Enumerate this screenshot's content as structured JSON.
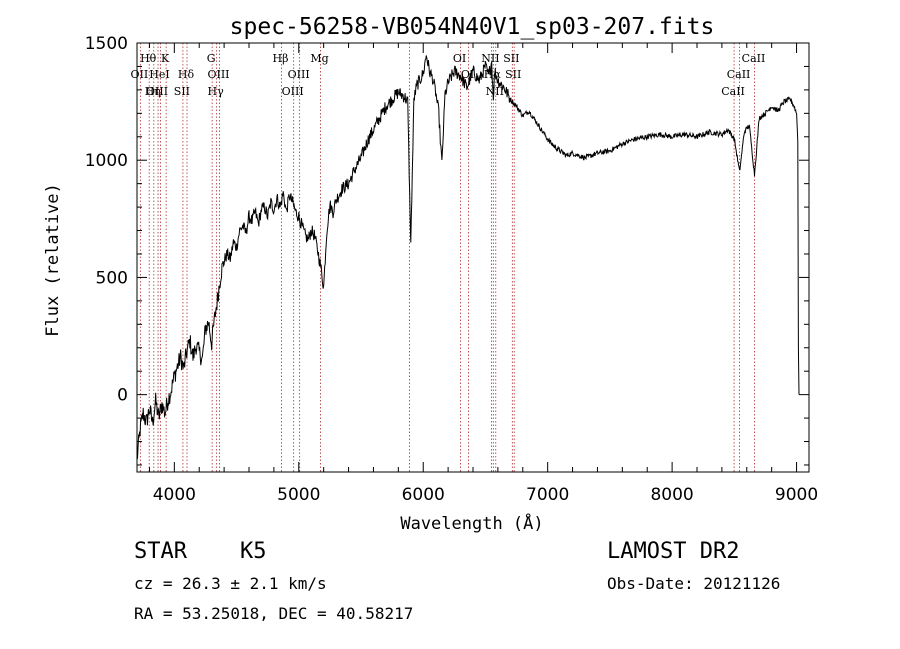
{
  "chart_data": {
    "type": "line",
    "title": "spec-56258-VB054N40V1_sp03-207.fits",
    "xlabel": "Wavelength (Å)",
    "ylabel": "Flux (relative)",
    "xlim": [
      3700,
      9100
    ],
    "ylim": [
      -330,
      1500
    ],
    "xticks": [
      4000,
      5000,
      6000,
      7000,
      8000,
      9000
    ],
    "yticks": [
      0,
      500,
      1000,
      1500
    ],
    "grid": false,
    "series": [
      {
        "points": [
          [
            3700,
            -280
          ],
          [
            3725,
            -150
          ],
          [
            3750,
            -80
          ],
          [
            3775,
            -120
          ],
          [
            3800,
            -60
          ],
          [
            3825,
            -120
          ],
          [
            3850,
            -30
          ],
          [
            3875,
            -100
          ],
          [
            3900,
            -40
          ],
          [
            3925,
            -80
          ],
          [
            3950,
            -20
          ],
          [
            3975,
            20
          ],
          [
            4000,
            80
          ],
          [
            4025,
            120
          ],
          [
            4050,
            160
          ],
          [
            4075,
            110
          ],
          [
            4100,
            180
          ],
          [
            4125,
            230
          ],
          [
            4150,
            160
          ],
          [
            4175,
            210
          ],
          [
            4200,
            180
          ],
          [
            4225,
            150
          ],
          [
            4250,
            280
          ],
          [
            4275,
            310
          ],
          [
            4300,
            220
          ],
          [
            4325,
            330
          ],
          [
            4350,
            420
          ],
          [
            4375,
            520
          ],
          [
            4400,
            570
          ],
          [
            4425,
            600
          ],
          [
            4450,
            580
          ],
          [
            4475,
            650
          ],
          [
            4500,
            630
          ],
          [
            4525,
            700
          ],
          [
            4550,
            720
          ],
          [
            4575,
            690
          ],
          [
            4600,
            760
          ],
          [
            4625,
            740
          ],
          [
            4650,
            780
          ],
          [
            4675,
            730
          ],
          [
            4700,
            790
          ],
          [
            4725,
            800
          ],
          [
            4750,
            760
          ],
          [
            4775,
            820
          ],
          [
            4800,
            790
          ],
          [
            4825,
            840
          ],
          [
            4850,
            800
          ],
          [
            4875,
            860
          ],
          [
            4900,
            780
          ],
          [
            4925,
            850
          ],
          [
            4950,
            820
          ],
          [
            4975,
            780
          ],
          [
            5000,
            760
          ],
          [
            5025,
            720
          ],
          [
            5050,
            680
          ],
          [
            5075,
            660
          ],
          [
            5100,
            700
          ],
          [
            5125,
            680
          ],
          [
            5150,
            620
          ],
          [
            5175,
            550
          ],
          [
            5200,
            460
          ],
          [
            5225,
            700
          ],
          [
            5250,
            810
          ],
          [
            5275,
            780
          ],
          [
            5300,
            830
          ],
          [
            5350,
            880
          ],
          [
            5400,
            900
          ],
          [
            5450,
            960
          ],
          [
            5500,
            1010
          ],
          [
            5550,
            1080
          ],
          [
            5600,
            1130
          ],
          [
            5650,
            1180
          ],
          [
            5700,
            1230
          ],
          [
            5750,
            1260
          ],
          [
            5800,
            1290
          ],
          [
            5850,
            1270
          ],
          [
            5875,
            1250
          ],
          [
            5900,
            640
          ],
          [
            5925,
            1260
          ],
          [
            5950,
            1320
          ],
          [
            6000,
            1370
          ],
          [
            6025,
            1450
          ],
          [
            6050,
            1380
          ],
          [
            6075,
            1350
          ],
          [
            6100,
            1290
          ],
          [
            6125,
            1200
          ],
          [
            6150,
            980
          ],
          [
            6175,
            1280
          ],
          [
            6200,
            1330
          ],
          [
            6250,
            1380
          ],
          [
            6300,
            1360
          ],
          [
            6350,
            1310
          ],
          [
            6400,
            1380
          ],
          [
            6450,
            1340
          ],
          [
            6500,
            1400
          ],
          [
            6525,
            1360
          ],
          [
            6550,
            1420
          ],
          [
            6563,
            1270
          ],
          [
            6575,
            1380
          ],
          [
            6600,
            1340
          ],
          [
            6650,
            1310
          ],
          [
            6700,
            1260
          ],
          [
            6750,
            1230
          ],
          [
            6800,
            1190
          ],
          [
            6850,
            1210
          ],
          [
            6900,
            1170
          ],
          [
            6950,
            1130
          ],
          [
            7000,
            1090
          ],
          [
            7050,
            1060
          ],
          [
            7100,
            1040
          ],
          [
            7150,
            1020
          ],
          [
            7200,
            1030
          ],
          [
            7300,
            1010
          ],
          [
            7400,
            1030
          ],
          [
            7500,
            1040
          ],
          [
            7600,
            1070
          ],
          [
            7700,
            1090
          ],
          [
            7800,
            1100
          ],
          [
            7900,
            1110
          ],
          [
            8000,
            1100
          ],
          [
            8100,
            1110
          ],
          [
            8200,
            1100
          ],
          [
            8300,
            1120
          ],
          [
            8400,
            1110
          ],
          [
            8450,
            1130
          ],
          [
            8500,
            1090
          ],
          [
            8542,
            950
          ],
          [
            8580,
            1120
          ],
          [
            8620,
            1150
          ],
          [
            8662,
            940
          ],
          [
            8700,
            1180
          ],
          [
            8750,
            1200
          ],
          [
            8800,
            1230
          ],
          [
            8850,
            1210
          ],
          [
            8900,
            1250
          ],
          [
            8950,
            1260
          ],
          [
            8980,
            1230
          ],
          [
            9000,
            1200
          ],
          [
            9010,
            1080
          ],
          [
            9015,
            200
          ],
          [
            9020,
            0
          ]
        ]
      }
    ],
    "line_labels": [
      {
        "text": "Hθ",
        "wl": 3798,
        "row": 0
      },
      {
        "text": "K",
        "wl": 3934,
        "row": 0
      },
      {
        "text": "G",
        "wl": 4304,
        "row": 0
      },
      {
        "text": "Hβ",
        "wl": 4861,
        "row": 0
      },
      {
        "text": "Mg",
        "wl": 5175,
        "row": 0
      },
      {
        "text": "OI",
        "wl": 6300,
        "row": 0
      },
      {
        "text": "NII",
        "wl": 6548,
        "row": 0
      },
      {
        "text": "SII",
        "wl": 6716,
        "row": 0
      },
      {
        "text": "CaII",
        "wl": 8662,
        "row": 0
      },
      {
        "text": "OII",
        "wl": 3727,
        "row": 1
      },
      {
        "text": "HeI",
        "wl": 3889,
        "row": 1
      },
      {
        "text": "Hδ",
        "wl": 4102,
        "row": 1
      },
      {
        "text": "OIII",
        "wl": 4363,
        "row": 1
      },
      {
        "text": "OIII",
        "wl": 5007,
        "row": 1
      },
      {
        "text": "OI",
        "wl": 6364,
        "row": 1
      },
      {
        "text": "Hα",
        "wl": 6563,
        "row": 1
      },
      {
        "text": "SII",
        "wl": 6731,
        "row": 1
      },
      {
        "text": "CaII",
        "wl": 8542,
        "row": 1
      },
      {
        "text": "OIII",
        "wl": 3869,
        "row": 2
      },
      {
        "text": "Hη",
        "wl": 3835,
        "row": 2
      },
      {
        "text": "SII",
        "wl": 4069,
        "row": 2
      },
      {
        "text": "Hγ",
        "wl": 4340,
        "row": 2
      },
      {
        "text": "OIII",
        "wl": 4959,
        "row": 2
      },
      {
        "text": "NII",
        "wl": 6583,
        "row": 2
      },
      {
        "text": "CaII",
        "wl": 8498,
        "row": 2
      }
    ],
    "marker_lines": [
      3727,
      3798,
      3835,
      3869,
      3889,
      3934,
      4069,
      4102,
      4304,
      4340,
      4363,
      4861,
      4959,
      5007,
      5175,
      5890,
      6300,
      6364,
      6548,
      6563,
      6583,
      6716,
      6731,
      8498,
      8542,
      8662
    ]
  },
  "info": {
    "object_class": "STAR",
    "subclass": "K5",
    "survey": "LAMOST DR2",
    "redshift": "cz = 26.3 ± 2.1 km/s",
    "obs_date": "Obs-Date: 20121126",
    "coords": "RA =  53.25018, DEC =  40.58217"
  }
}
